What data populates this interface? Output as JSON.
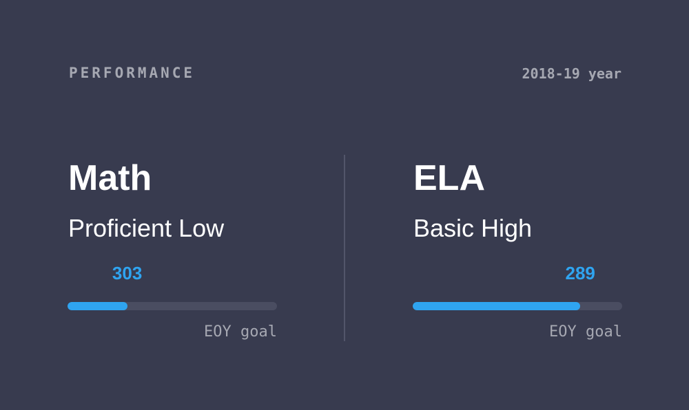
{
  "header": {
    "title": "PERFORMANCE",
    "year": "2018-19 year"
  },
  "subjects": [
    {
      "name": "Math",
      "level": "Proficient Low",
      "score": "303",
      "progress": 0.285,
      "goal_label": "EOY goal"
    },
    {
      "name": "ELA",
      "level": "Basic High",
      "score": "289",
      "progress": 0.8,
      "goal_label": "EOY goal"
    }
  ],
  "colors": {
    "background": "#383b4f",
    "accent": "#2fa4f0",
    "muted_text": "#a6a8b2",
    "track": "#4a4d61"
  }
}
